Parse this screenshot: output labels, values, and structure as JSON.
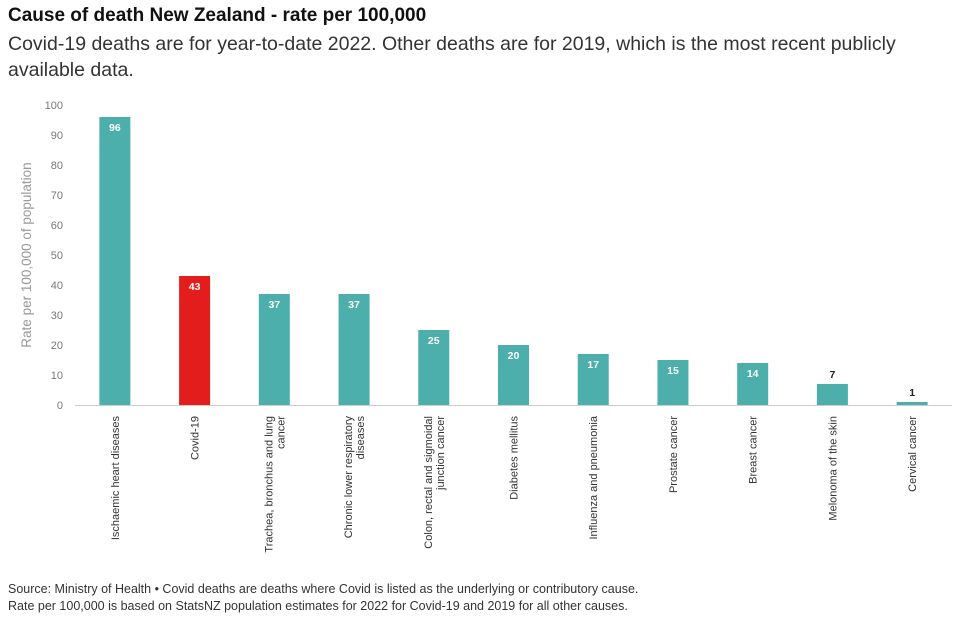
{
  "header": {
    "title": "Cause of death New Zealand - rate per 100,000",
    "subtitle": "Covid-19 deaths are for year-to-date 2022. Other deaths are for 2019, which is the most recent publicly available data."
  },
  "footer": {
    "source": "Source: Ministry of Health • Covid deaths are deaths where Covid is listed as the underlying or contributory cause.",
    "note": "Rate per 100,000 is based on StatsNZ population estimates for 2022 for Covid-19 and 2019 for all other causes."
  },
  "colors": {
    "default_bar": "#4cafac",
    "highlight_bar": "#e31c1c"
  },
  "chart_data": {
    "type": "bar",
    "title": "Cause of death New Zealand - rate per 100,000",
    "ylabel": "Rate per 100,000 of population",
    "xlabel": "",
    "ylim": [
      0,
      100
    ],
    "yticks": [
      0,
      10,
      20,
      30,
      40,
      50,
      60,
      70,
      80,
      90,
      100
    ],
    "grid": false,
    "categories": [
      [
        "Ischaemic heart diseases"
      ],
      [
        "Covid-19"
      ],
      [
        "Trachea, bronchus and lung",
        "cancer"
      ],
      [
        "Chronic lower respiratory",
        "diseases"
      ],
      [
        "Colon, rectal and sigmoidal",
        "junction cancer"
      ],
      [
        "Diabetes mellitus"
      ],
      [
        "Influenza and pneumonia"
      ],
      [
        "Prostate cancer"
      ],
      [
        "Breast cancer"
      ],
      [
        "Melonoma of the skin"
      ],
      [
        "Cervical cancer"
      ]
    ],
    "values": [
      96,
      43,
      37,
      37,
      25,
      20,
      17,
      15,
      14,
      7,
      1
    ],
    "highlight_index": 1
  }
}
